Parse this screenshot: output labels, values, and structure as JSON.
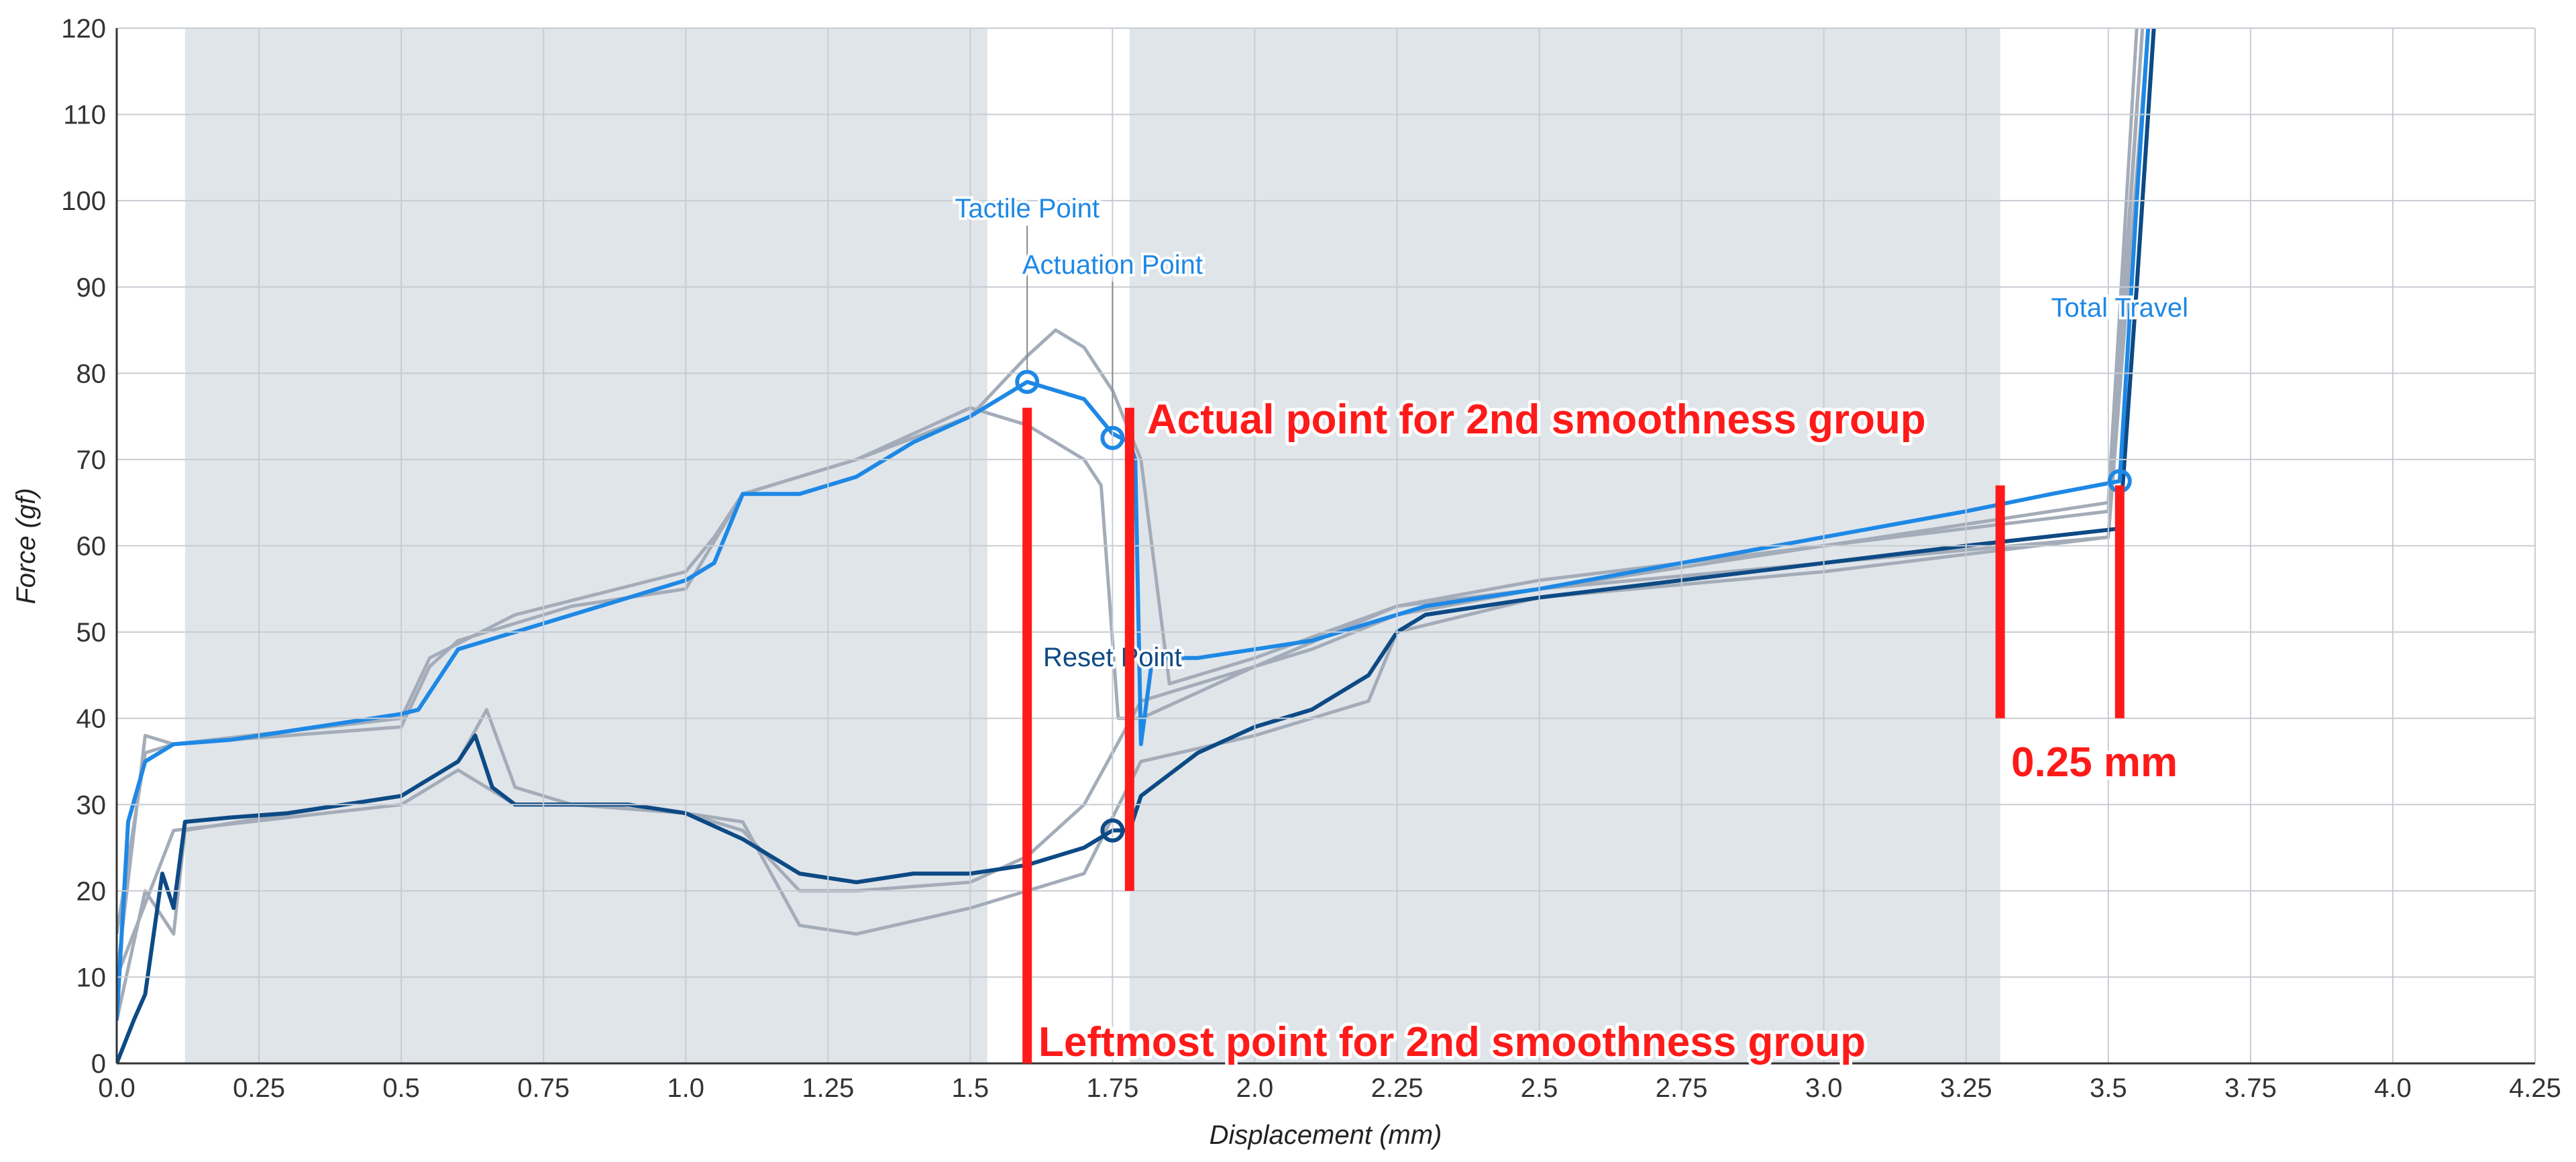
{
  "chart_data": {
    "type": "line",
    "xlabel": "Displacement (mm)",
    "ylabel": "Force (gf)",
    "xlim": [
      0,
      4.25
    ],
    "ylim": [
      0,
      120
    ],
    "xticks": [
      {
        "value": 0,
        "label": "0.0"
      },
      0.25,
      0.5,
      0.75,
      {
        "value": 1,
        "label": "1.0"
      },
      1.25,
      1.5,
      1.75,
      {
        "value": 2,
        "label": "2.0"
      },
      2.25,
      2.5,
      2.75,
      {
        "value": 3,
        "label": "3.0"
      },
      3.25,
      3.5,
      3.75,
      {
        "value": 4,
        "label": "4.0"
      },
      4.25
    ],
    "yticks": [
      0,
      10,
      20,
      30,
      40,
      50,
      60,
      70,
      80,
      90,
      100,
      110,
      120
    ],
    "grid": true,
    "shaded_regions": [
      [
        0.12,
        1.53
      ],
      [
        1.78,
        3.31
      ]
    ],
    "series": [
      {
        "color": "#a3acb8",
        "x": [
          0,
          0.05,
          0.1,
          0.3,
          0.5,
          0.55,
          0.6,
          0.8,
          1.0,
          1.1,
          1.3,
          1.5,
          1.6,
          1.65,
          1.7,
          1.75,
          1.8,
          1.85,
          2.0,
          2.25,
          2.5,
          3.0,
          3.5,
          3.55
        ],
        "values": [
          10,
          38,
          37,
          38,
          39,
          46,
          49,
          53,
          55,
          66,
          70,
          75,
          82,
          85,
          83,
          78,
          70,
          44,
          47,
          53,
          56,
          60,
          65,
          120
        ]
      },
      {
        "color": "#a3acb8",
        "x": [
          0,
          0.05,
          0.1,
          0.5,
          0.55,
          0.7,
          1.0,
          1.05,
          1.1,
          1.3,
          1.5,
          1.6,
          1.7,
          1.73,
          1.76,
          1.8,
          2.0,
          2.25,
          2.5,
          3.0,
          3.5,
          3.56
        ],
        "values": [
          15,
          36,
          37,
          40,
          47,
          52,
          57,
          61,
          66,
          70,
          76,
          74,
          70,
          67,
          40,
          40,
          46,
          53,
          55,
          60,
          64,
          120
        ]
      },
      {
        "color": "#a3acb8",
        "x": [
          0,
          0.05,
          0.1,
          0.12,
          0.5,
          0.6,
          0.65,
          0.7,
          0.8,
          1.0,
          1.1,
          1.15,
          1.2,
          1.3,
          1.5,
          1.6,
          1.7,
          1.8,
          2.0,
          2.2,
          2.25,
          2.5,
          3.0,
          3.5,
          3.56
        ],
        "values": [
          5,
          20,
          15,
          27,
          31,
          35,
          41,
          32,
          30,
          29,
          28,
          22,
          16,
          15,
          18,
          20,
          22,
          35,
          38,
          42,
          50,
          54,
          57,
          61,
          120
        ]
      },
      {
        "color": "#a3acb8",
        "x": [
          0,
          0.1,
          0.5,
          0.6,
          0.7,
          0.8,
          1.0,
          1.1,
          1.2,
          1.3,
          1.5,
          1.6,
          1.7,
          1.8,
          2.0,
          2.1,
          2.25,
          2.5,
          3.0,
          3.5,
          3.57
        ],
        "values": [
          10,
          27,
          30,
          34,
          30,
          30,
          29,
          27,
          20,
          20,
          21,
          24,
          30,
          42,
          46,
          48,
          52,
          55,
          58,
          61,
          120
        ]
      },
      {
        "color": "#0d4a85",
        "x": [
          0,
          0.03,
          0.05,
          0.08,
          0.1,
          0.12,
          0.2,
          0.3,
          0.4,
          0.5,
          0.55,
          0.6,
          0.63,
          0.66,
          0.7,
          0.8,
          0.9,
          1.0,
          1.1,
          1.2,
          1.3,
          1.4,
          1.5,
          1.6,
          1.7,
          1.75,
          1.78,
          1.8,
          1.9,
          2.0,
          2.1,
          2.2,
          2.25,
          2.3,
          2.5,
          2.75,
          3.0,
          3.25,
          3.52,
          3.55,
          3.58
        ],
        "values": [
          0,
          5,
          8,
          22,
          18,
          28,
          28.5,
          29,
          30,
          31,
          33,
          35,
          38,
          32,
          30,
          30,
          30,
          29,
          26,
          22,
          21,
          22,
          22,
          23,
          25,
          27,
          27,
          31,
          36,
          39,
          41,
          45,
          50,
          52,
          54,
          56,
          58,
          60,
          62,
          90,
          120
        ]
      },
      {
        "color": "#1e88e5",
        "x": [
          0,
          0.02,
          0.05,
          0.1,
          0.2,
          0.3,
          0.4,
          0.5,
          0.53,
          0.6,
          0.7,
          0.8,
          0.9,
          1.0,
          1.05,
          1.1,
          1.2,
          1.3,
          1.4,
          1.5,
          1.55,
          1.6,
          1.65,
          1.7,
          1.75,
          1.78,
          1.79,
          1.8,
          1.82,
          1.9,
          2.0,
          2.1,
          2.2,
          2.3,
          2.5,
          2.75,
          3.0,
          3.25,
          3.4,
          3.52,
          3.55,
          3.57
        ],
        "values": [
          5,
          28,
          35,
          37,
          37.5,
          38.5,
          39.5,
          40.5,
          41,
          48,
          50,
          52,
          54,
          56,
          58,
          66,
          66,
          68,
          72,
          75,
          77,
          79,
          78,
          77,
          73,
          72,
          70,
          37,
          47,
          47,
          48,
          49,
          51,
          53,
          55,
          58,
          61,
          64,
          66,
          67.5,
          100,
          120
        ]
      }
    ],
    "points": [
      {
        "label": "Tactile Point",
        "x": 1.6,
        "y": 79,
        "color": "#1e88e5"
      },
      {
        "label": "Actuation Point",
        "x": 1.75,
        "y": 72.5,
        "color": "#1e88e5"
      },
      {
        "label": "Reset Point",
        "x": 1.75,
        "y": 27,
        "color": "#0d4a85"
      },
      {
        "label": "Total Travel",
        "x": 3.52,
        "y": 67.5,
        "color": "#1e88e5"
      }
    ],
    "red_lines": [
      {
        "x": 1.6,
        "y": [
          0,
          76
        ]
      },
      {
        "x": 1.78,
        "y": [
          20,
          76
        ]
      },
      {
        "x": 3.31,
        "y": [
          40,
          67
        ]
      },
      {
        "x": 3.52,
        "y": [
          40,
          67
        ]
      }
    ],
    "red_color": "#ff1a1a",
    "annotations": [
      {
        "text": "Actual point for 2nd smoothness group"
      },
      {
        "text": "0.25 mm"
      },
      {
        "text": "Leftmost point for 2nd smoothness group"
      }
    ]
  }
}
